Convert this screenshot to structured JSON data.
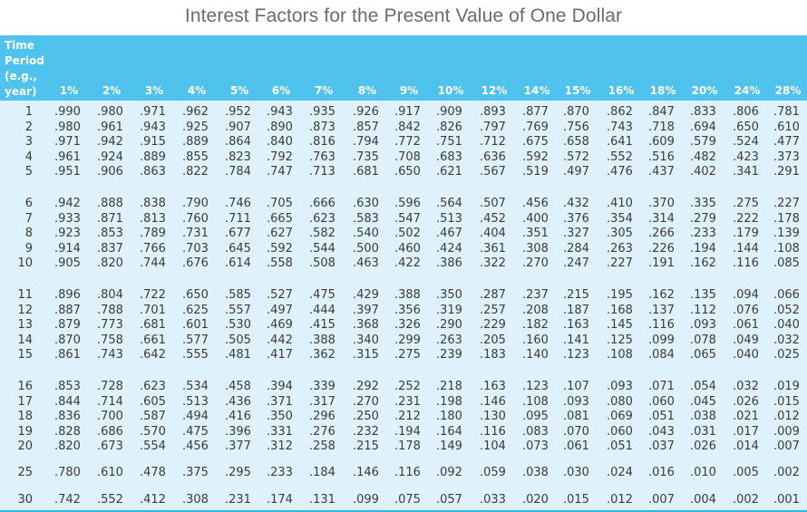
{
  "title": "Interest Factors for the Present Value of One Dollar",
  "colors": {
    "header_bg": "#4fc3ee",
    "body_bg": "#dff2fb",
    "border": "#29b6e0"
  },
  "table": {
    "period_header": [
      "Time",
      "Period",
      "(e.g.,",
      "year)"
    ],
    "rates": [
      "1%",
      "2%",
      "3%",
      "4%",
      "5%",
      "6%",
      "7%",
      "8%",
      "9%",
      "10%",
      "12%",
      "14%",
      "15%",
      "16%",
      "18%",
      "20%",
      "24%",
      "28%"
    ],
    "rows": [
      {
        "period": "1",
        "values": [
          ".990",
          ".980",
          ".971",
          ".962",
          ".952",
          ".943",
          ".935",
          ".926",
          ".917",
          ".909",
          ".893",
          ".877",
          ".870",
          ".862",
          ".847",
          ".833",
          ".806",
          ".781"
        ]
      },
      {
        "period": "2",
        "values": [
          ".980",
          ".961",
          ".943",
          ".925",
          ".907",
          ".890",
          ".873",
          ".857",
          ".842",
          ".826",
          ".797",
          ".769",
          ".756",
          ".743",
          ".718",
          ".694",
          ".650",
          ".610"
        ]
      },
      {
        "period": "3",
        "values": [
          ".971",
          ".942",
          ".915",
          ".889",
          ".864",
          ".840",
          ".816",
          ".794",
          ".772",
          ".751",
          ".712",
          ".675",
          ".658",
          ".641",
          ".609",
          ".579",
          ".524",
          ".477"
        ]
      },
      {
        "period": "4",
        "values": [
          ".961",
          ".924",
          ".889",
          ".855",
          ".823",
          ".792",
          ".763",
          ".735",
          ".708",
          ".683",
          ".636",
          ".592",
          ".572",
          ".552",
          ".516",
          ".482",
          ".423",
          ".373"
        ]
      },
      {
        "period": "5",
        "values": [
          ".951",
          ".906",
          ".863",
          ".822",
          ".784",
          ".747",
          ".713",
          ".681",
          ".650",
          ".621",
          ".567",
          ".519",
          ".497",
          ".476",
          ".437",
          ".402",
          ".341",
          ".291"
        ]
      },
      {
        "period": "6",
        "values": [
          ".942",
          ".888",
          ".838",
          ".790",
          ".746",
          ".705",
          ".666",
          ".630",
          ".596",
          ".564",
          ".507",
          ".456",
          ".432",
          ".410",
          ".370",
          ".335",
          ".275",
          ".227"
        ]
      },
      {
        "period": "7",
        "values": [
          ".933",
          ".871",
          ".813",
          ".760",
          ".711",
          ".665",
          ".623",
          ".583",
          ".547",
          ".513",
          ".452",
          ".400",
          ".376",
          ".354",
          ".314",
          ".279",
          ".222",
          ".178"
        ]
      },
      {
        "period": "8",
        "values": [
          ".923",
          ".853",
          ".789",
          ".731",
          ".677",
          ".627",
          ".582",
          ".540",
          ".502",
          ".467",
          ".404",
          ".351",
          ".327",
          ".305",
          ".266",
          ".233",
          ".179",
          ".139"
        ]
      },
      {
        "period": "9",
        "values": [
          ".914",
          ".837",
          ".766",
          ".703",
          ".645",
          ".592",
          ".544",
          ".500",
          ".460",
          ".424",
          ".361",
          ".308",
          ".284",
          ".263",
          ".226",
          ".194",
          ".144",
          ".108"
        ]
      },
      {
        "period": "10",
        "values": [
          ".905",
          ".820",
          ".744",
          ".676",
          ".614",
          ".558",
          ".508",
          ".463",
          ".422",
          ".386",
          ".322",
          ".270",
          ".247",
          ".227",
          ".191",
          ".162",
          ".116",
          ".085"
        ]
      },
      {
        "period": "11",
        "values": [
          ".896",
          ".804",
          ".722",
          ".650",
          ".585",
          ".527",
          ".475",
          ".429",
          ".388",
          ".350",
          ".287",
          ".237",
          ".215",
          ".195",
          ".162",
          ".135",
          ".094",
          ".066"
        ]
      },
      {
        "period": "12",
        "values": [
          ".887",
          ".788",
          ".701",
          ".625",
          ".557",
          ".497",
          ".444",
          ".397",
          ".356",
          ".319",
          ".257",
          ".208",
          ".187",
          ".168",
          ".137",
          ".112",
          ".076",
          ".052"
        ]
      },
      {
        "period": "13",
        "values": [
          ".879",
          ".773",
          ".681",
          ".601",
          ".530",
          ".469",
          ".415",
          ".368",
          ".326",
          ".290",
          ".229",
          ".182",
          ".163",
          ".145",
          ".116",
          ".093",
          ".061",
          ".040"
        ]
      },
      {
        "period": "14",
        "values": [
          ".870",
          ".758",
          ".661",
          ".577",
          ".505",
          ".442",
          ".388",
          ".340",
          ".299",
          ".263",
          ".205",
          ".160",
          ".141",
          ".125",
          ".099",
          ".078",
          ".049",
          ".032"
        ]
      },
      {
        "period": "15",
        "values": [
          ".861",
          ".743",
          ".642",
          ".555",
          ".481",
          ".417",
          ".362",
          ".315",
          ".275",
          ".239",
          ".183",
          ".140",
          ".123",
          ".108",
          ".084",
          ".065",
          ".040",
          ".025"
        ]
      },
      {
        "period": "16",
        "values": [
          ".853",
          ".728",
          ".623",
          ".534",
          ".458",
          ".394",
          ".339",
          ".292",
          ".252",
          ".218",
          ".163",
          ".123",
          ".107",
          ".093",
          ".071",
          ".054",
          ".032",
          ".019"
        ]
      },
      {
        "period": "17",
        "values": [
          ".844",
          ".714",
          ".605",
          ".513",
          ".436",
          ".371",
          ".317",
          ".270",
          ".231",
          ".198",
          ".146",
          ".108",
          ".093",
          ".080",
          ".060",
          ".045",
          ".026",
          ".015"
        ]
      },
      {
        "period": "18",
        "values": [
          ".836",
          ".700",
          ".587",
          ".494",
          ".416",
          ".350",
          ".296",
          ".250",
          ".212",
          ".180",
          ".130",
          ".095",
          ".081",
          ".069",
          ".051",
          ".038",
          ".021",
          ".012"
        ]
      },
      {
        "period": "19",
        "values": [
          ".828",
          ".686",
          ".570",
          ".475",
          ".396",
          ".331",
          ".276",
          ".232",
          ".194",
          ".164",
          ".116",
          ".083",
          ".070",
          ".060",
          ".043",
          ".031",
          ".017",
          ".009"
        ]
      },
      {
        "period": "20",
        "values": [
          ".820",
          ".673",
          ".554",
          ".456",
          ".377",
          ".312",
          ".258",
          ".215",
          ".178",
          ".149",
          ".104",
          ".073",
          ".061",
          ".051",
          ".037",
          ".026",
          ".014",
          ".007"
        ]
      },
      {
        "period": "25",
        "values": [
          ".780",
          ".610",
          ".478",
          ".375",
          ".295",
          ".233",
          ".184",
          ".146",
          ".116",
          ".092",
          ".059",
          ".038",
          ".030",
          ".024",
          ".016",
          ".010",
          ".005",
          ".002"
        ]
      },
      {
        "period": "30",
        "values": [
          ".742",
          ".552",
          ".412",
          ".308",
          ".231",
          ".174",
          ".131",
          ".099",
          ".075",
          ".057",
          ".033",
          ".020",
          ".015",
          ".012",
          ".007",
          ".004",
          ".002",
          ".001"
        ]
      }
    ]
  }
}
